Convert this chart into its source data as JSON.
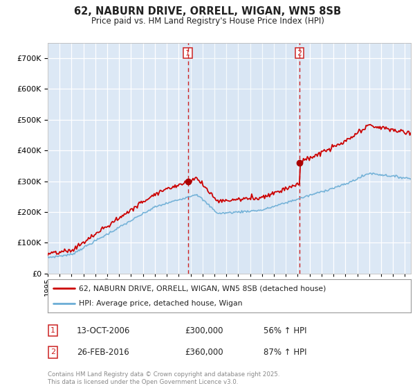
{
  "title": "62, NABURN DRIVE, ORRELL, WIGAN, WN5 8SB",
  "subtitle": "Price paid vs. HM Land Registry's House Price Index (HPI)",
  "ylim": [
    0,
    750000
  ],
  "yticks": [
    0,
    100000,
    200000,
    300000,
    400000,
    500000,
    600000,
    700000
  ],
  "ytick_labels": [
    "£0",
    "£100K",
    "£200K",
    "£300K",
    "£400K",
    "£500K",
    "£600K",
    "£700K"
  ],
  "background_color": "#ffffff",
  "plot_bg_color": "#dce8f5",
  "grid_color": "#ffffff",
  "hpi_line_color": "#6aadd5",
  "price_line_color": "#cc0000",
  "sale1_date_x": 2006.78,
  "sale1_price": 300000,
  "sale2_date_x": 2016.15,
  "sale2_price": 360000,
  "vline_color": "#cc2222",
  "sale_marker_color": "#aa0000",
  "legend_line1": "62, NABURN DRIVE, ORRELL, WIGAN, WN5 8SB (detached house)",
  "legend_line2": "HPI: Average price, detached house, Wigan",
  "annotation1_label": "1",
  "annotation1_date": "13-OCT-2006",
  "annotation1_price": "£300,000",
  "annotation1_hpi": "56% ↑ HPI",
  "annotation2_label": "2",
  "annotation2_date": "26-FEB-2016",
  "annotation2_price": "£360,000",
  "annotation2_hpi": "87% ↑ HPI",
  "footer": "Contains HM Land Registry data © Crown copyright and database right 2025.\nThis data is licensed under the Open Government Licence v3.0.",
  "xmin": 1995,
  "xmax": 2025.5
}
